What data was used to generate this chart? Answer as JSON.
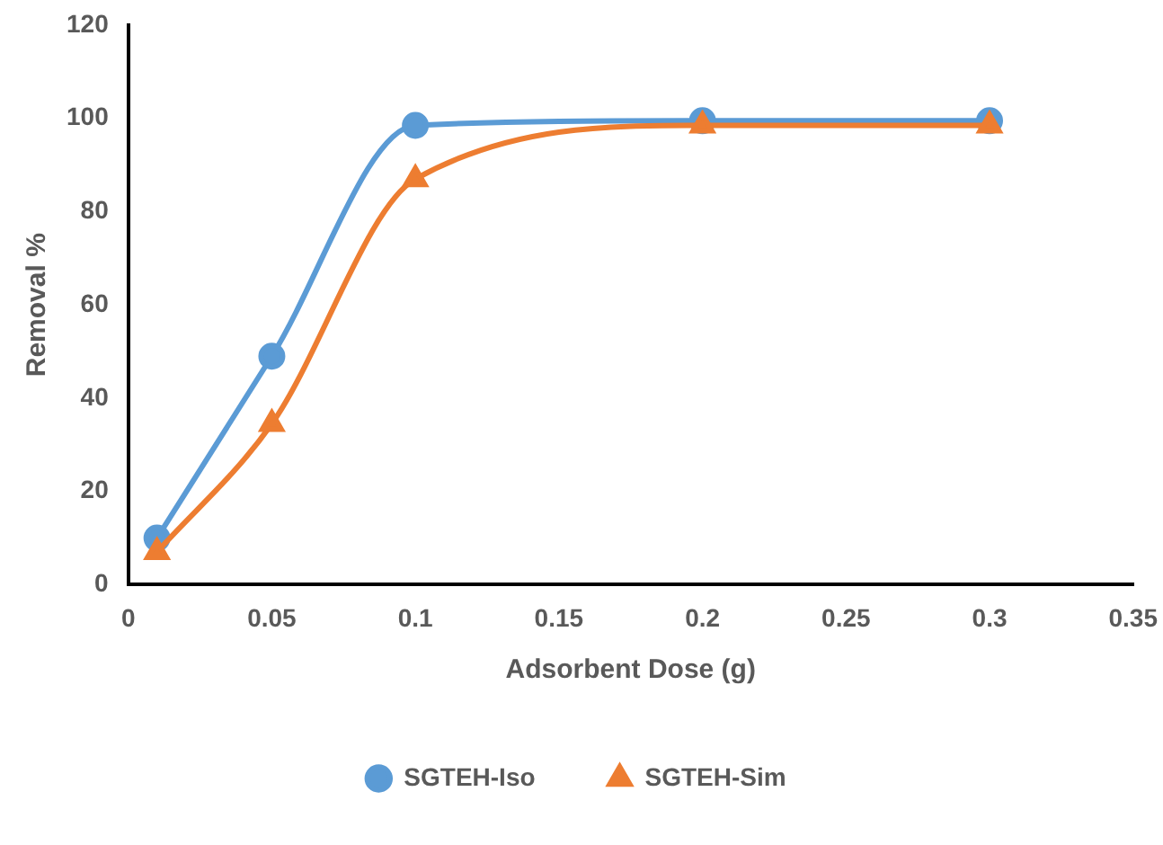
{
  "chart_data": {
    "type": "line",
    "xlabel": "Adsorbent Dose (g)",
    "ylabel": "Removal %",
    "x": [
      0.01,
      0.05,
      0.1,
      0.2,
      0.3
    ],
    "series": [
      {
        "name": "SGTEH-Iso",
        "color": "#5b9bd5",
        "marker": "circle",
        "values": [
          10,
          49,
          98.5,
          99.5,
          99.5
        ]
      },
      {
        "name": "SGTEH-Sim",
        "color": "#ed7d31",
        "marker": "triangle",
        "values": [
          7,
          34.5,
          87,
          98.5,
          98.5
        ]
      }
    ],
    "xlim": [
      0,
      0.35
    ],
    "xticks": [
      0,
      0.05,
      0.1,
      0.15,
      0.2,
      0.25,
      0.3,
      0.35
    ],
    "ylim": [
      0,
      120
    ],
    "yticks": [
      0,
      20,
      40,
      60,
      80,
      100,
      120
    ],
    "grid": false,
    "legend": "bottom"
  }
}
